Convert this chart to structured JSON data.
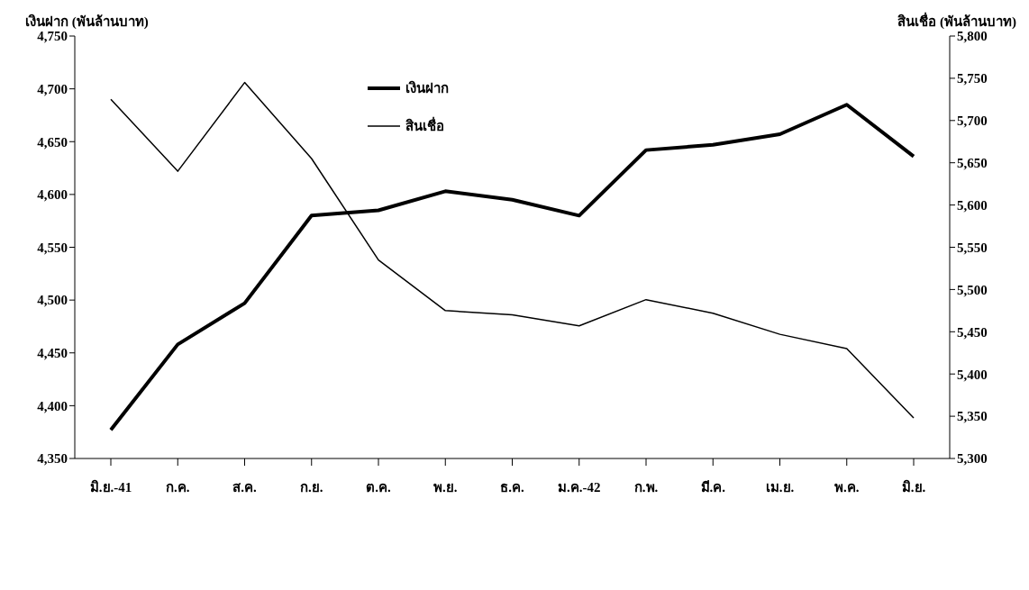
{
  "chart_data": {
    "type": "line",
    "ylabel": "เงินฝาก (พันล้านบาท)",
    "y2label": "สินเชื่อ (พันล้านบาท)",
    "categories": [
      "มิ.ย.-41",
      "ก.ค.",
      "ส.ค.",
      "ก.ย.",
      "ต.ค.",
      "พ.ย.",
      "ธ.ค.",
      "ม.ค.-42",
      "ก.พ.",
      "มี.ค.",
      "เม.ย.",
      "พ.ค.",
      "มิ.ย."
    ],
    "series": [
      {
        "name": "เงินฝาก",
        "color": "#000000",
        "values": [
          4377,
          4458,
          4497,
          4580,
          4585,
          4603,
          4595,
          4580,
          4642,
          4647,
          4657,
          4685,
          4636
        ]
      },
      {
        "name": "สินเชื่อ",
        "color": "#000000",
        "axis": "y2",
        "values": [
          5725,
          5640,
          5745,
          5655,
          5535,
          5475,
          5470,
          5457,
          5488,
          5472,
          5447,
          5430,
          5348
        ]
      }
    ],
    "ylim": [
      4350,
      4750
    ],
    "yticks": [
      {
        "value": 4350,
        "label": "4,350"
      },
      {
        "value": 4400,
        "label": "4,400"
      },
      {
        "value": 4450,
        "label": "4,450"
      },
      {
        "value": 4500,
        "label": "4,500"
      },
      {
        "value": 4550,
        "label": "4,550"
      },
      {
        "value": 4600,
        "label": "4,600"
      },
      {
        "value": 4650,
        "label": "4,650"
      },
      {
        "value": 4700,
        "label": "4,700"
      },
      {
        "value": 4750,
        "label": "4,750"
      }
    ],
    "y2lim": [
      5300,
      5800
    ],
    "y2ticks": [
      {
        "value": 5300,
        "label": "5,300"
      },
      {
        "value": 5350,
        "label": "5,350"
      },
      {
        "value": 5400,
        "label": "5,400"
      },
      {
        "value": 5450,
        "label": "5,450"
      },
      {
        "value": 5500,
        "label": "5,500"
      },
      {
        "value": 5550,
        "label": "5,550"
      },
      {
        "value": 5600,
        "label": "5,600"
      },
      {
        "value": 5650,
        "label": "5,650"
      },
      {
        "value": 5700,
        "label": "5,700"
      },
      {
        "value": 5750,
        "label": "5,750"
      },
      {
        "value": 5800,
        "label": "5,800"
      }
    ],
    "grid": false,
    "legend": "top left",
    "marker": "none",
    "line_style": "solid"
  }
}
